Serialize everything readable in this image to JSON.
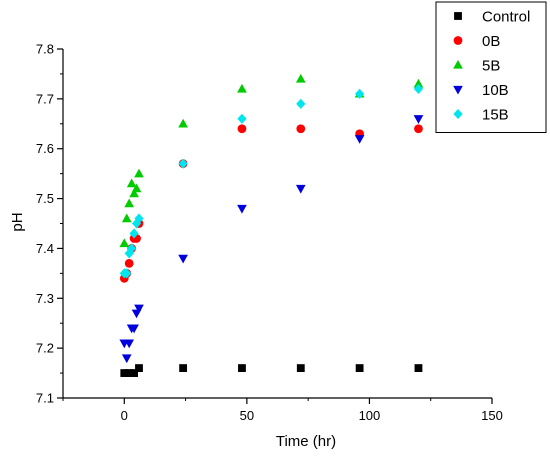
{
  "chart_data": {
    "type": "scatter",
    "title": "",
    "xlabel": "Time (hr)",
    "ylabel": "pH",
    "xlim": [
      -25,
      150
    ],
    "ylim": [
      7.1,
      7.8
    ],
    "x_ticks": [
      "0",
      "50",
      "100",
      "150"
    ],
    "y_ticks": [
      "7.1",
      "7.2",
      "7.3",
      "7.4",
      "7.5",
      "7.6",
      "7.7",
      "7.8"
    ],
    "grid": false,
    "legend_position": "top-right",
    "series": [
      {
        "name": "Control",
        "marker": "square",
        "color": "#000000",
        "points": [
          [
            0,
            7.15
          ],
          [
            2,
            7.15
          ],
          [
            4,
            7.15
          ],
          [
            6,
            7.16
          ],
          [
            24,
            7.16
          ],
          [
            48,
            7.16
          ],
          [
            72,
            7.16
          ],
          [
            96,
            7.16
          ],
          [
            120,
            7.16
          ]
        ]
      },
      {
        "name": "0B",
        "marker": "circle",
        "color": "#ff0000",
        "points": [
          [
            0,
            7.34
          ],
          [
            1,
            7.35
          ],
          [
            2,
            7.37
          ],
          [
            3,
            7.4
          ],
          [
            4,
            7.42
          ],
          [
            5,
            7.42
          ],
          [
            6,
            7.45
          ],
          [
            24,
            7.57
          ],
          [
            48,
            7.64
          ],
          [
            72,
            7.64
          ],
          [
            96,
            7.63
          ],
          [
            120,
            7.64
          ]
        ]
      },
      {
        "name": "5B",
        "marker": "triangle-up",
        "color": "#00cc00",
        "points": [
          [
            0,
            7.41
          ],
          [
            1,
            7.46
          ],
          [
            2,
            7.49
          ],
          [
            3,
            7.53
          ],
          [
            4,
            7.51
          ],
          [
            5,
            7.52
          ],
          [
            6,
            7.55
          ],
          [
            24,
            7.65
          ],
          [
            48,
            7.72
          ],
          [
            72,
            7.74
          ],
          [
            96,
            7.71
          ],
          [
            120,
            7.73
          ]
        ]
      },
      {
        "name": "10B",
        "marker": "triangle-down",
        "color": "#0000dd",
        "points": [
          [
            0,
            7.21
          ],
          [
            1,
            7.18
          ],
          [
            2,
            7.21
          ],
          [
            3,
            7.24
          ],
          [
            4,
            7.24
          ],
          [
            5,
            7.27
          ],
          [
            6,
            7.28
          ],
          [
            24,
            7.38
          ],
          [
            48,
            7.48
          ],
          [
            72,
            7.52
          ],
          [
            96,
            7.62
          ],
          [
            120,
            7.66
          ]
        ]
      },
      {
        "name": "15B",
        "marker": "diamond",
        "color": "#00e5ee",
        "points": [
          [
            0,
            7.35
          ],
          [
            1,
            7.35
          ],
          [
            2,
            7.39
          ],
          [
            3,
            7.4
          ],
          [
            4,
            7.43
          ],
          [
            5,
            7.45
          ],
          [
            6,
            7.46
          ],
          [
            24,
            7.57
          ],
          [
            48,
            7.66
          ],
          [
            72,
            7.69
          ],
          [
            96,
            7.71
          ],
          [
            120,
            7.72
          ]
        ]
      }
    ]
  }
}
